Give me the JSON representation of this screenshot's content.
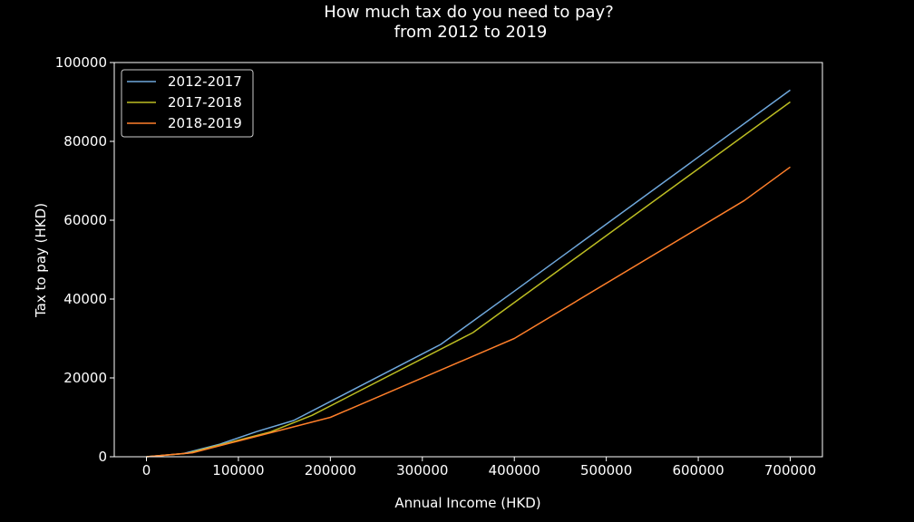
{
  "chart_data": {
    "type": "line",
    "title": "How much tax do you need to pay?",
    "subtitle": "from 2012 to 2019",
    "xlabel": "Annual Income (HKD)",
    "ylabel": "Tax to pay (HKD)",
    "xlim": [
      -35000,
      735000
    ],
    "ylim": [
      0,
      100000
    ],
    "x_ticks": [
      "0",
      "100000",
      "200000",
      "300000",
      "400000",
      "500000",
      "600000",
      "700000"
    ],
    "y_ticks": [
      "0",
      "20000",
      "40000",
      "60000",
      "80000",
      "100000"
    ],
    "legend_position": "upper-left",
    "grid": false,
    "background_color": "#000000",
    "series": [
      {
        "name": "2012-2017",
        "color": "#6fa8dc",
        "x": [
          0,
          40000,
          80000,
          120000,
          160000,
          320000,
          400000,
          700000
        ],
        "y": [
          0,
          800,
          3200,
          6400,
          9200,
          28500,
          42000,
          93000
        ]
      },
      {
        "name": "2017-2018",
        "color": "#bcbd22",
        "x": [
          0,
          45000,
          90000,
          135000,
          180000,
          355000,
          700000
        ],
        "y": [
          0,
          900,
          3600,
          6300,
          10500,
          31500,
          90000
        ]
      },
      {
        "name": "2018-2019",
        "color": "#ff7f2a",
        "x": [
          0,
          50000,
          100000,
          150000,
          200000,
          400000,
          650000,
          700000
        ],
        "y": [
          0,
          1000,
          4000,
          7000,
          10000,
          30000,
          65000,
          73500
        ]
      }
    ]
  }
}
